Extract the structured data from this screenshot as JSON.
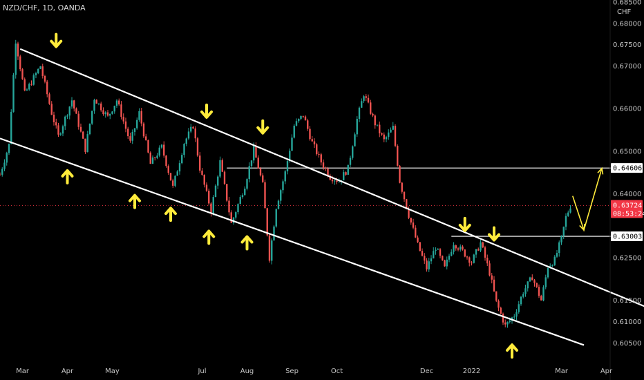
{
  "header": {
    "symbol_label": "NZD/CHF, 1D, OANDA",
    "currency": "CHF"
  },
  "colors": {
    "bull": "#26a69a",
    "bear": "#ef5350",
    "arrow": "#ffeb3b",
    "line": "#ffffff",
    "price_tag": "#f23645",
    "background": "#000000"
  },
  "chart_data": {
    "type": "candlestick",
    "symbol": "NZD/CHF",
    "timeframe": "1D",
    "y_ticks": [
      0.605,
      0.61,
      0.615,
      0.625,
      0.64,
      0.65,
      0.66,
      0.67,
      0.675,
      0.68,
      0.685
    ],
    "y_tick_labels": [
      "0.60500",
      "0.61000",
      "0.61500",
      "0.62500",
      "0.64000",
      "0.65000",
      "0.66000",
      "0.67000",
      "0.67500",
      "0.68000",
      "0.68500"
    ],
    "ylim": [
      0.601,
      0.6855
    ],
    "x_ticks": [
      {
        "label": "Mar",
        "t": 0.5
      },
      {
        "label": "Apr",
        "t": 1.5
      },
      {
        "label": "May",
        "t": 2.5
      },
      {
        "label": "Jul",
        "t": 4.5
      },
      {
        "label": "Aug",
        "t": 5.5
      },
      {
        "label": "Sep",
        "t": 6.5
      },
      {
        "label": "Oct",
        "t": 7.5
      },
      {
        "label": "Dec",
        "t": 9.5
      },
      {
        "label": "2022",
        "t": 10.5
      },
      {
        "label": "Mar",
        "t": 12.5
      },
      {
        "label": "Apr",
        "t": 13.5
      }
    ],
    "xlim": [
      0,
      14.4
    ],
    "price_path": [
      [
        0.0,
        0.6445
      ],
      [
        0.2,
        0.6515
      ],
      [
        0.35,
        0.676
      ],
      [
        0.55,
        0.6635
      ],
      [
        0.9,
        0.67
      ],
      [
        1.15,
        0.659
      ],
      [
        1.3,
        0.6535
      ],
      [
        1.6,
        0.662
      ],
      [
        1.9,
        0.6505
      ],
      [
        2.1,
        0.6625
      ],
      [
        2.4,
        0.658
      ],
      [
        2.6,
        0.662
      ],
      [
        2.9,
        0.652
      ],
      [
        3.1,
        0.659
      ],
      [
        3.35,
        0.647
      ],
      [
        3.6,
        0.651
      ],
      [
        3.85,
        0.6415
      ],
      [
        4.1,
        0.652
      ],
      [
        4.3,
        0.656
      ],
      [
        4.45,
        0.646
      ],
      [
        4.7,
        0.636
      ],
      [
        4.9,
        0.6475
      ],
      [
        5.15,
        0.633
      ],
      [
        5.45,
        0.642
      ],
      [
        5.65,
        0.6505
      ],
      [
        5.85,
        0.642
      ],
      [
        6.0,
        0.625
      ],
      [
        6.15,
        0.637
      ],
      [
        6.35,
        0.645
      ],
      [
        6.55,
        0.656
      ],
      [
        6.75,
        0.6585
      ],
      [
        6.95,
        0.652
      ],
      [
        7.15,
        0.6475
      ],
      [
        7.35,
        0.644
      ],
      [
        7.55,
        0.643
      ],
      [
        7.75,
        0.646
      ],
      [
        7.95,
        0.6575
      ],
      [
        8.1,
        0.6635
      ],
      [
        8.35,
        0.6565
      ],
      [
        8.55,
        0.6525
      ],
      [
        8.75,
        0.6555
      ],
      [
        8.9,
        0.643
      ],
      [
        9.1,
        0.635
      ],
      [
        9.3,
        0.628
      ],
      [
        9.5,
        0.6225
      ],
      [
        9.7,
        0.6275
      ],
      [
        9.9,
        0.6225
      ],
      [
        10.1,
        0.6285
      ],
      [
        10.3,
        0.6265
      ],
      [
        10.5,
        0.624
      ],
      [
        10.7,
        0.6285
      ],
      [
        10.9,
        0.6215
      ],
      [
        11.05,
        0.6145
      ],
      [
        11.25,
        0.609
      ],
      [
        11.45,
        0.6115
      ],
      [
        11.65,
        0.617
      ],
      [
        11.85,
        0.6205
      ],
      [
        12.05,
        0.615
      ],
      [
        12.2,
        0.623
      ],
      [
        12.35,
        0.6245
      ],
      [
        12.5,
        0.6295
      ],
      [
        12.6,
        0.6345
      ],
      [
        12.7,
        0.6372
      ]
    ],
    "trendlines": [
      {
        "name": "upper channel line",
        "from": [
          0.45,
          0.674
        ],
        "to": [
          14.6,
          0.6125
        ]
      },
      {
        "name": "lower channel line",
        "from": [
          0.0,
          0.653
        ],
        "to": [
          13.0,
          0.6045
        ]
      }
    ],
    "horizontal_levels": [
      {
        "value": 0.64606,
        "from_t": 5.05,
        "label": "0.64606",
        "tag_fill": "#ffffff",
        "tag_text": "#000000"
      },
      {
        "value": 0.63003,
        "from_t": 10.05,
        "label": "0.63003",
        "tag_fill": "#ffffff",
        "tag_text": "#000000"
      }
    ],
    "current_price": {
      "value": 0.63724,
      "label": "0.63724",
      "countdown": "08:53:24",
      "line_from_t": 0.0
    },
    "arrows_down": [
      [
        1.25,
        0.676
      ],
      [
        4.6,
        0.6594
      ],
      [
        5.85,
        0.6557
      ],
      [
        10.35,
        0.6328
      ],
      [
        11.0,
        0.6306
      ]
    ],
    "arrows_up": [
      [
        1.5,
        0.644
      ],
      [
        3.0,
        0.6382
      ],
      [
        3.8,
        0.6352
      ],
      [
        4.65,
        0.6298
      ],
      [
        5.5,
        0.6285
      ],
      [
        11.4,
        0.6031
      ]
    ],
    "projection": {
      "points": [
        [
          12.75,
          0.6395
        ],
        [
          13.0,
          0.6315
        ],
        [
          13.4,
          0.646
        ]
      ],
      "color": "#ffeb3b"
    }
  }
}
